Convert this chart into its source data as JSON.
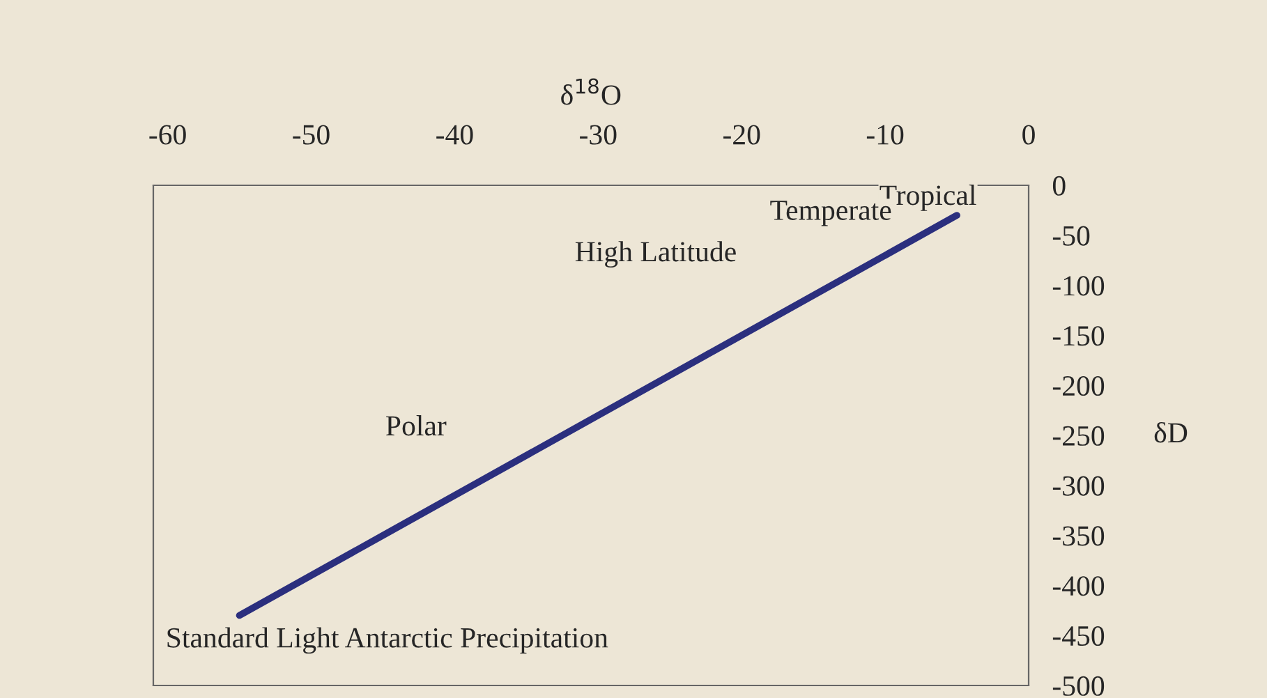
{
  "chart_data": {
    "type": "line",
    "xlabel": "δ$^{18}$O",
    "ylabel": "δD",
    "xlim": [
      -61,
      0
    ],
    "xticks": [
      -60,
      -50,
      -40,
      -30,
      -20,
      -10,
      0
    ],
    "ylim": [
      -500,
      0
    ],
    "yticks": [
      0,
      -50,
      -100,
      -150,
      -200,
      -250,
      -300,
      -350,
      -400,
      -450,
      -500
    ],
    "series": [
      {
        "color": "#2b2f7e",
        "x": [
          -55,
          -5
        ],
        "values": [
          -430,
          -30
        ]
      }
    ],
    "annotations": [
      "Tropical",
      "Temperate",
      "High Latitude",
      "Polar",
      "Standard Light Antarctic Precipitation"
    ],
    "grid": false,
    "legend": false,
    "marker": "none",
    "line_style": "solid"
  }
}
